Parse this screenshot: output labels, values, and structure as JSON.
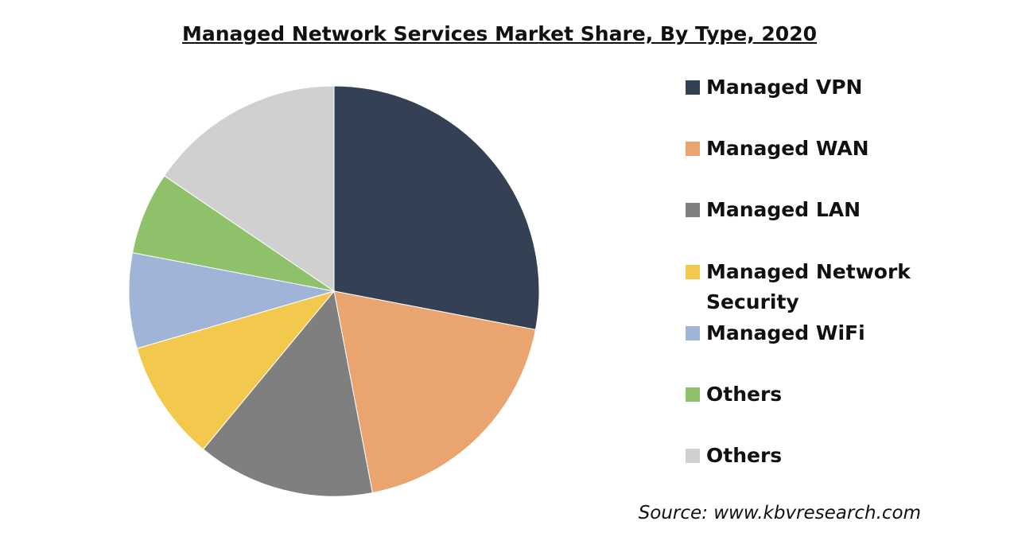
{
  "chart_data": {
    "type": "pie",
    "title": "Managed Network Services Market Share, By Type, 2020",
    "categories": [
      "Managed VPN",
      "Managed WAN",
      "Managed LAN",
      "Managed Network Security",
      "Managed WiFi",
      "Others",
      "Others"
    ],
    "values": [
      28,
      19,
      14,
      9.5,
      7.5,
      6.5,
      15.5
    ],
    "colors": [
      "#344154",
      "#e9a46f",
      "#7f7f7f",
      "#f2c94c",
      "#9fb4d6",
      "#8fc06a",
      "#d0d0d0"
    ],
    "legend": "right",
    "source": "Source: www.kbvresearch.com"
  }
}
